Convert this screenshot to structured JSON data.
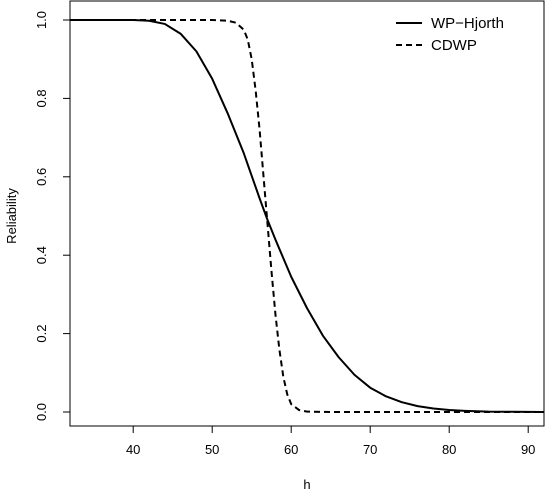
{
  "chart_data": {
    "type": "line",
    "title": "",
    "xlabel": "h",
    "ylabel": "Reliability",
    "xlim": [
      32,
      92
    ],
    "ylim": [
      0,
      1
    ],
    "x_ticks": [
      40,
      50,
      60,
      70,
      80,
      90
    ],
    "y_ticks": [
      0.0,
      0.2,
      0.4,
      0.6,
      0.8,
      1.0
    ],
    "x_tick_labels": [
      "40",
      "50",
      "60",
      "70",
      "80",
      "90"
    ],
    "y_tick_labels": [
      "0.0",
      "0.2",
      "0.4",
      "0.6",
      "0.8",
      "1.0"
    ],
    "grid": false,
    "legend_position": "top-right",
    "series": [
      {
        "name": "WP−Hjorth",
        "line_style": "solid",
        "color": "#000000",
        "x": [
          32,
          40,
          42,
          44,
          46,
          48,
          50,
          52,
          54,
          56,
          57,
          58,
          60,
          62,
          64,
          66,
          68,
          70,
          72,
          74,
          76,
          78,
          80,
          82,
          85,
          88,
          92
        ],
        "y": [
          1.0,
          1.0,
          0.998,
          0.99,
          0.965,
          0.92,
          0.85,
          0.76,
          0.66,
          0.545,
          0.49,
          0.44,
          0.345,
          0.265,
          0.195,
          0.14,
          0.095,
          0.062,
          0.04,
          0.025,
          0.015,
          0.009,
          0.005,
          0.003,
          0.001,
          0.0005,
          0.0
        ]
      },
      {
        "name": "CDWP",
        "line_style": "dashed",
        "color": "#000000",
        "x": [
          32,
          40,
          45,
          50,
          52,
          53,
          54,
          54.5,
          55,
          55.5,
          56,
          56.5,
          57,
          57.5,
          58,
          58.5,
          59,
          59.5,
          60,
          61,
          62,
          65,
          70,
          80,
          92
        ],
        "y": [
          1.0,
          1.0,
          1.0,
          1.0,
          0.998,
          0.993,
          0.975,
          0.95,
          0.9,
          0.82,
          0.72,
          0.6,
          0.48,
          0.36,
          0.25,
          0.16,
          0.09,
          0.045,
          0.02,
          0.005,
          0.001,
          0.0,
          0.0,
          0.0,
          0.0
        ]
      }
    ]
  }
}
